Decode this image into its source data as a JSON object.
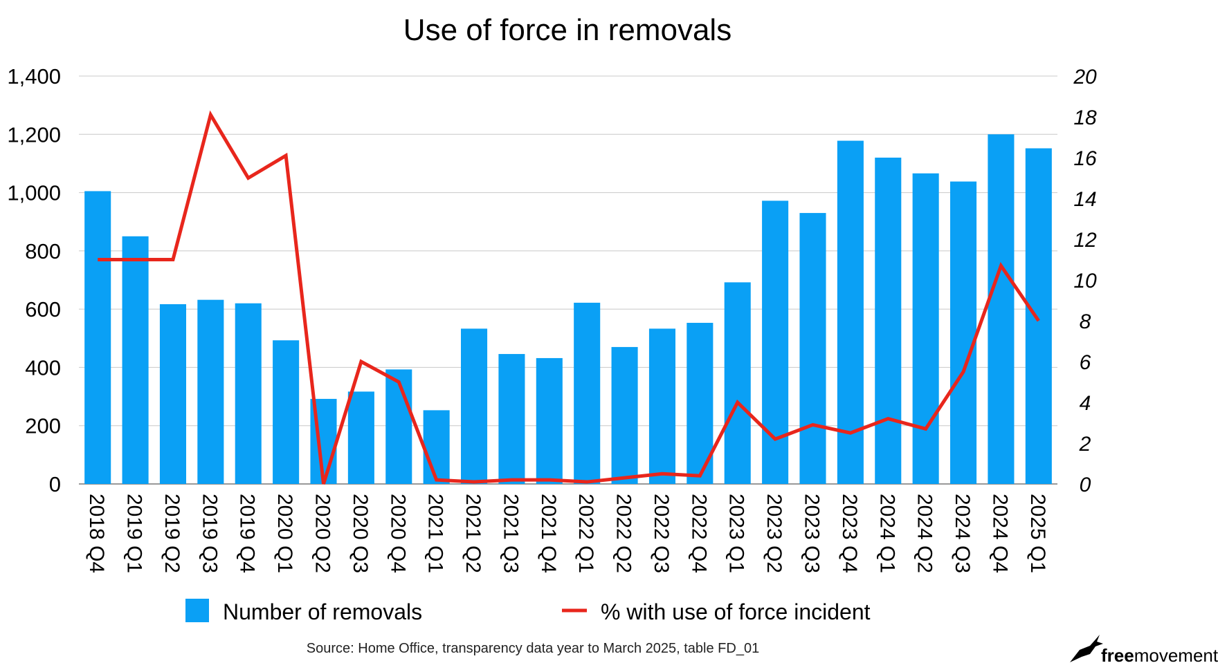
{
  "chart_data": {
    "type": "bar",
    "title": "Use of force in removals",
    "categories": [
      "2018 Q4",
      "2019 Q1",
      "2019 Q2",
      "2019 Q3",
      "2019 Q4",
      "2020 Q1",
      "2020 Q2",
      "2020 Q3",
      "2020 Q4",
      "2021 Q1",
      "2021 Q2",
      "2021 Q3",
      "2021 Q4",
      "2022 Q1",
      "2022 Q2",
      "2022 Q3",
      "2022 Q4",
      "2023 Q1",
      "2023 Q2",
      "2023 Q3",
      "2023 Q4",
      "2024 Q1",
      "2024 Q2",
      "2024 Q3",
      "2024 Q4",
      "2025 Q1"
    ],
    "series": [
      {
        "name": "Number of removals",
        "type": "bar",
        "axis": "left",
        "color": "#0aa0f5",
        "values": [
          1005,
          850,
          617,
          632,
          620,
          493,
          292,
          317,
          393,
          253,
          533,
          446,
          432,
          622,
          470,
          533,
          553,
          692,
          972,
          930,
          1178,
          1120,
          1066,
          1038,
          1200,
          1152
        ]
      },
      {
        "name": "% with use of force incident",
        "type": "line",
        "axis": "right",
        "color": "#e8261c",
        "values": [
          11.0,
          11.0,
          11.0,
          18.1,
          15.0,
          16.1,
          0.0,
          6.0,
          5.0,
          0.2,
          0.1,
          0.2,
          0.2,
          0.1,
          0.3,
          0.5,
          0.4,
          4.0,
          2.2,
          2.9,
          2.5,
          3.2,
          2.7,
          5.5,
          10.7,
          8.0
        ]
      }
    ],
    "ylim_left": [
      0,
      1400
    ],
    "yticks_left": [
      "0",
      "200",
      "400",
      "600",
      "800",
      "1,000",
      "1,200",
      "1,400"
    ],
    "ylim_right": [
      0,
      20
    ],
    "yticks_right": [
      "0",
      "2",
      "4",
      "6",
      "8",
      "10",
      "12",
      "14",
      "16",
      "18",
      "20"
    ],
    "grid": true,
    "legend_position": "bottom"
  },
  "source_note": "Source: Home Office, transparency data year to March 2025, table FD_01",
  "logo": {
    "text_bold": "free",
    "text_regular": "movement",
    "icon": "bird-icon"
  }
}
